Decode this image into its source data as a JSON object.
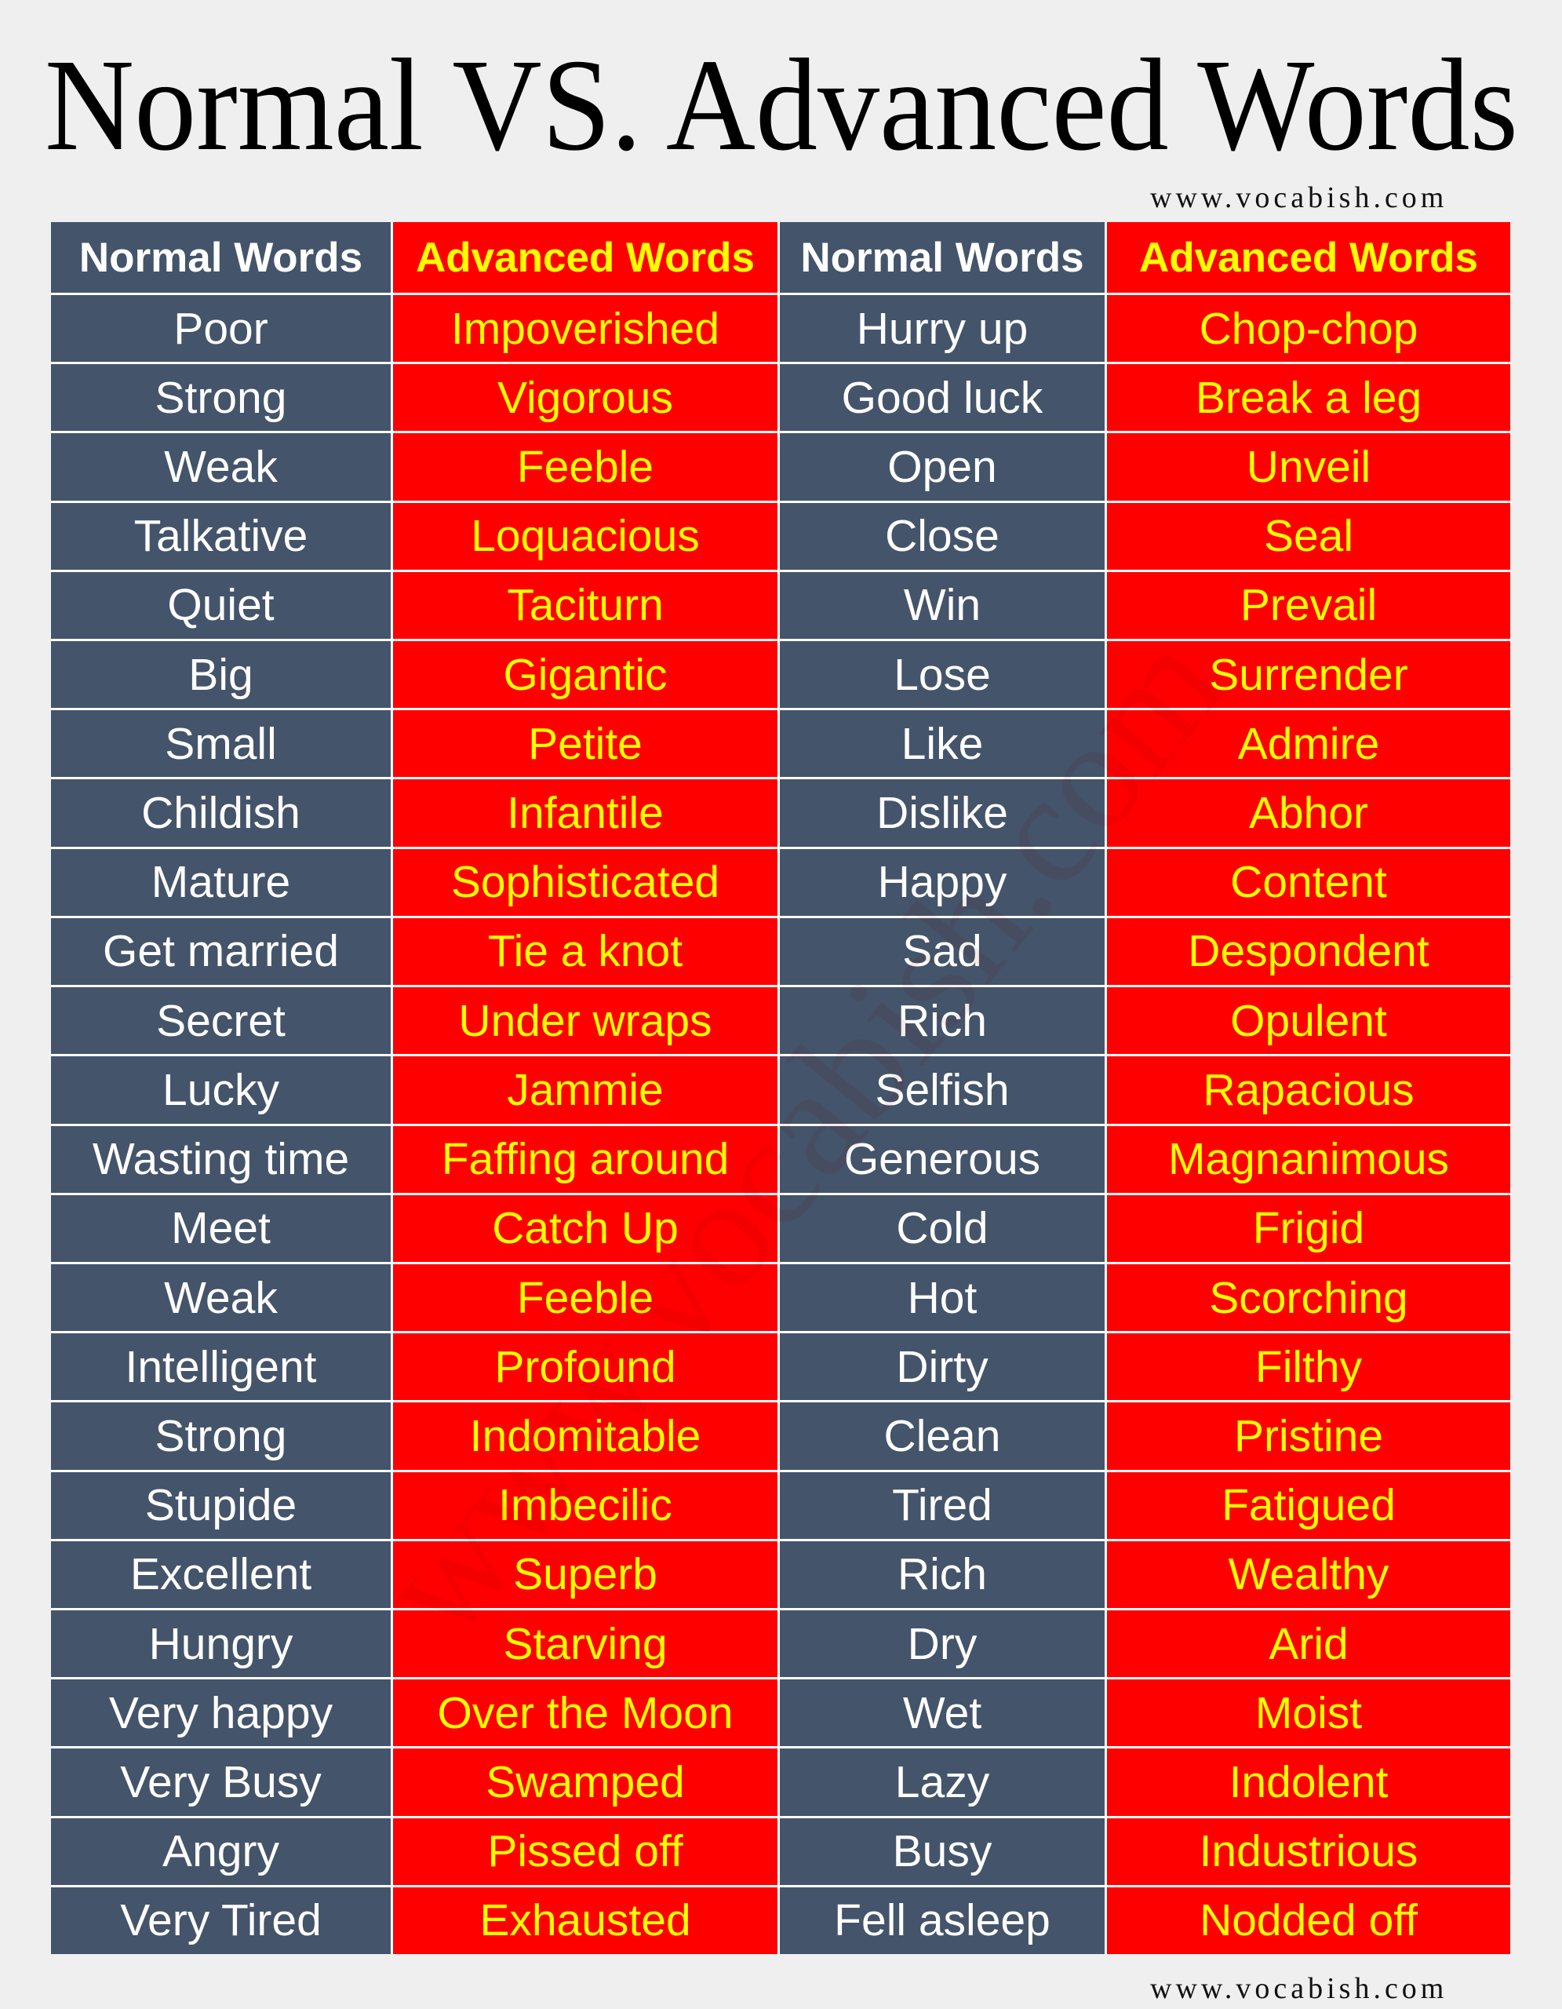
{
  "title": "Normal VS. Advanced Words",
  "url_top": "www.vocabish.com",
  "watermark": "www.vocabish.com",
  "table": {
    "header": [
      "Normal Words",
      "Advanced Words",
      "Normal Words",
      "Advanced Words"
    ],
    "rows": [
      [
        "Poor",
        "Impoverished",
        "Hurry up",
        "Chop-chop"
      ],
      [
        "Strong",
        "Vigorous",
        "Good luck",
        "Break a leg"
      ],
      [
        "Weak",
        "Feeble",
        "Open",
        "Unveil"
      ],
      [
        "Talkative",
        "Loquacious",
        "Close",
        "Seal"
      ],
      [
        "Quiet",
        "Taciturn",
        "Win",
        "Prevail"
      ],
      [
        "Big",
        "Gigantic",
        "Lose",
        "Surrender"
      ],
      [
        "Small",
        "Petite",
        "Like",
        "Admire"
      ],
      [
        "Childish",
        "Infantile",
        "Dislike",
        "Abhor"
      ],
      [
        "Mature",
        "Sophisticated",
        "Happy",
        "Content"
      ],
      [
        "Get married",
        "Tie a knot",
        "Sad",
        "Despondent"
      ],
      [
        "Secret",
        "Under wraps",
        "Rich",
        "Opulent"
      ],
      [
        "Lucky",
        "Jammie",
        "Selfish",
        "Rapacious"
      ],
      [
        "Wasting time",
        "Faffing around",
        "Generous",
        "Magnanimous"
      ],
      [
        "Meet",
        "Catch Up",
        "Cold",
        "Frigid"
      ],
      [
        "Weak",
        "Feeble",
        "Hot",
        "Scorching"
      ],
      [
        "Intelligent",
        "Profound",
        "Dirty",
        "Filthy"
      ],
      [
        "Strong",
        "Indomitable",
        "Clean",
        "Pristine"
      ],
      [
        "Stupide",
        "Imbecilic",
        "Tired",
        "Fatigued"
      ],
      [
        "Excellent",
        "Superb",
        "Rich",
        "Wealthy"
      ],
      [
        "Hungry",
        "Starving",
        "Dry",
        "Arid"
      ],
      [
        "Very happy",
        "Over the Moon",
        "Wet",
        "Moist"
      ],
      [
        "Very Busy",
        "Swamped",
        "Lazy",
        "Indolent"
      ],
      [
        "Angry",
        "Pissed off",
        "Busy",
        "Industrious"
      ],
      [
        "Very Tired",
        "Exhausted",
        "Fell asleep",
        "Nodded off"
      ]
    ]
  },
  "url_bottom": "www.vocabish.com"
}
